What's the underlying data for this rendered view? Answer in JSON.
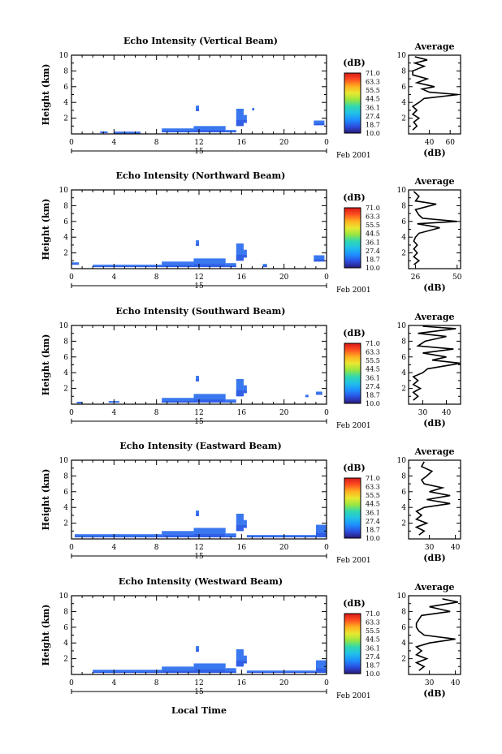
{
  "colors": {
    "colormap": [
      "#2a1a7a",
      "#2b4fe0",
      "#1e90ff",
      "#20c0e8",
      "#30d8b0",
      "#9ae640",
      "#e8e830",
      "#ffb020",
      "#ff5020",
      "#d81818"
    ],
    "echo": "#3a78f0"
  },
  "common": {
    "time_ticks": [
      "0",
      "4",
      "8",
      "12",
      "16",
      "20",
      "0"
    ],
    "date_day": "15",
    "date_month_year": "Feb 2001",
    "height_ticks": [
      "2",
      "4",
      "6",
      "8",
      "10"
    ],
    "y_label": "Height (km)",
    "unit_label": "(dB)",
    "avg_title": "Average",
    "avg_xlabel": "(dB)",
    "colorbar_ticks": [
      "71.0",
      "63.3",
      "55.5",
      "44.5",
      "36.1",
      "27.4",
      "18.7",
      "10.0"
    ],
    "x_label": "Local Time"
  },
  "chart_data": [
    {
      "type": "heatmap",
      "title": "Echo Intensity (Vertical Beam)",
      "xlabel": "",
      "ylabel": "Height (km)",
      "xlim": [
        0,
        24
      ],
      "ylim": [
        0,
        10
      ],
      "colorbar": {
        "label": "(dB)",
        "range": [
          10.0,
          71.0
        ]
      },
      "echo_spans": [
        {
          "t0": 2.7,
          "t1": 3.4,
          "h": 0.3
        },
        {
          "t0": 4.0,
          "t1": 6.5,
          "h": 0.25
        },
        {
          "t0": 8.5,
          "t1": 11.5,
          "h": 0.7
        },
        {
          "t0": 11.5,
          "t1": 14.5,
          "h": 1.0
        },
        {
          "t0": 11.7,
          "t1": 12.0,
          "h": 3.6,
          "h0": 2.9
        },
        {
          "t0": 14.5,
          "t1": 15.5,
          "h": 0.5
        },
        {
          "t0": 15.5,
          "t1": 16.2,
          "h": 3.2,
          "h0": 1.0
        },
        {
          "t0": 16.2,
          "t1": 16.5,
          "h": 2.4,
          "h0": 1.4
        },
        {
          "t0": 17.0,
          "t1": 17.2,
          "h": 3.3,
          "h0": 3.0
        },
        {
          "t0": 22.8,
          "t1": 23.8,
          "h": 1.7,
          "h0": 1.1
        }
      ],
      "average": {
        "xlabel": "(dB)",
        "xticks": [
          40,
          60
        ],
        "xlim": [
          20,
          70
        ],
        "profile": [
          [
            24,
            0.5
          ],
          [
            28,
            1.0
          ],
          [
            25,
            1.5
          ],
          [
            30,
            2.0
          ],
          [
            24,
            2.5
          ],
          [
            28,
            3.0
          ],
          [
            24,
            3.5
          ],
          [
            30,
            4.0
          ],
          [
            35,
            4.5
          ],
          [
            68,
            5.0
          ],
          [
            40,
            5.3
          ],
          [
            33,
            5.7
          ],
          [
            45,
            6.0
          ],
          [
            28,
            6.5
          ],
          [
            38,
            7.0
          ],
          [
            24,
            7.5
          ],
          [
            24,
            8.0
          ],
          [
            35,
            8.6
          ],
          [
            26,
            9.0
          ],
          [
            38,
            9.4
          ],
          [
            26,
            9.8
          ]
        ]
      }
    },
    {
      "type": "heatmap",
      "title": "Echo Intensity (Northward Beam)",
      "xlabel": "",
      "ylabel": "Height (km)",
      "xlim": [
        0,
        24
      ],
      "ylim": [
        0,
        10
      ],
      "colorbar": {
        "label": "(dB)",
        "range": [
          10.0,
          71.0
        ]
      },
      "echo_spans": [
        {
          "t0": 0.0,
          "t1": 0.7,
          "h": 0.8,
          "h0": 0.5
        },
        {
          "t0": 2.0,
          "t1": 8.5,
          "h": 0.5
        },
        {
          "t0": 8.5,
          "t1": 11.5,
          "h": 0.9
        },
        {
          "t0": 11.5,
          "t1": 14.5,
          "h": 1.3
        },
        {
          "t0": 11.7,
          "t1": 12.0,
          "h": 3.6,
          "h0": 2.9
        },
        {
          "t0": 14.5,
          "t1": 15.5,
          "h": 0.7
        },
        {
          "t0": 15.5,
          "t1": 16.2,
          "h": 3.2,
          "h0": 1.0
        },
        {
          "t0": 16.2,
          "t1": 16.5,
          "h": 2.4,
          "h0": 1.4
        },
        {
          "t0": 18.0,
          "t1": 18.4,
          "h": 0.6
        },
        {
          "t0": 22.8,
          "t1": 23.8,
          "h": 1.7,
          "h0": 0.9
        }
      ],
      "average": {
        "xlabel": "(dB)",
        "xticks": [
          26,
          50
        ],
        "xlim": [
          22,
          52
        ],
        "profile": [
          [
            25,
            0.5
          ],
          [
            28,
            1.0
          ],
          [
            25,
            1.5
          ],
          [
            27,
            2.0
          ],
          [
            25,
            2.5
          ],
          [
            27,
            3.0
          ],
          [
            25,
            3.5
          ],
          [
            26,
            4.0
          ],
          [
            28,
            4.5
          ],
          [
            40,
            5.2
          ],
          [
            27,
            5.7
          ],
          [
            50,
            6.0
          ],
          [
            30,
            6.4
          ],
          [
            28,
            6.8
          ],
          [
            26,
            7.5
          ],
          [
            38,
            8.2
          ],
          [
            26,
            8.6
          ],
          [
            28,
            9.2
          ],
          [
            25,
            9.8
          ]
        ]
      }
    },
    {
      "type": "heatmap",
      "title": "Echo Intensity (Southward Beam)",
      "xlabel": "",
      "ylabel": "Height (km)",
      "xlim": [
        0,
        24
      ],
      "ylim": [
        0,
        10
      ],
      "colorbar": {
        "label": "(dB)",
        "range": [
          10.0,
          71.0
        ]
      },
      "echo_spans": [
        {
          "t0": 0.5,
          "t1": 1.0,
          "h": 0.3
        },
        {
          "t0": 3.5,
          "t1": 4.5,
          "h": 0.4
        },
        {
          "t0": 8.5,
          "t1": 11.5,
          "h": 0.8
        },
        {
          "t0": 11.5,
          "t1": 14.5,
          "h": 1.3
        },
        {
          "t0": 11.7,
          "t1": 12.0,
          "h": 3.6,
          "h0": 2.9
        },
        {
          "t0": 14.5,
          "t1": 15.5,
          "h": 0.6
        },
        {
          "t0": 15.5,
          "t1": 16.2,
          "h": 3.2,
          "h0": 1.0
        },
        {
          "t0": 16.2,
          "t1": 16.5,
          "h": 2.4,
          "h0": 1.4
        },
        {
          "t0": 22.0,
          "t1": 22.3,
          "h": 1.2,
          "h0": 0.9
        },
        {
          "t0": 23.0,
          "t1": 23.6,
          "h": 1.6,
          "h0": 1.2
        }
      ],
      "average": {
        "xlabel": "(dB)",
        "xticks": [
          30,
          40
        ],
        "xlim": [
          24,
          46
        ],
        "profile": [
          [
            26,
            0.5
          ],
          [
            28,
            1.0
          ],
          [
            26,
            1.5
          ],
          [
            29,
            2.0
          ],
          [
            26,
            2.5
          ],
          [
            28,
            3.0
          ],
          [
            26,
            3.5
          ],
          [
            30,
            4.0
          ],
          [
            32,
            4.5
          ],
          [
            46,
            5.2
          ],
          [
            34,
            5.6
          ],
          [
            40,
            6.0
          ],
          [
            30,
            6.5
          ],
          [
            43,
            7.0
          ],
          [
            28,
            7.4
          ],
          [
            31,
            8.0
          ],
          [
            40,
            8.6
          ],
          [
            28,
            9.0
          ],
          [
            44,
            9.6
          ],
          [
            30,
            9.9
          ]
        ]
      }
    },
    {
      "type": "heatmap",
      "title": "Echo Intensity (Eastward Beam)",
      "xlabel": "",
      "ylabel": "Height (km)",
      "xlim": [
        0,
        24
      ],
      "ylim": [
        0,
        10
      ],
      "colorbar": {
        "label": "(dB)",
        "range": [
          10.0,
          71.0
        ]
      },
      "echo_spans": [
        {
          "t0": 0.3,
          "t1": 8.5,
          "h": 0.6
        },
        {
          "t0": 8.5,
          "t1": 11.5,
          "h": 1.0
        },
        {
          "t0": 11.5,
          "t1": 14.5,
          "h": 1.4
        },
        {
          "t0": 11.7,
          "t1": 12.0,
          "h": 3.6,
          "h0": 2.9
        },
        {
          "t0": 14.5,
          "t1": 15.5,
          "h": 0.7
        },
        {
          "t0": 15.5,
          "t1": 16.2,
          "h": 3.2,
          "h0": 1.0
        },
        {
          "t0": 16.2,
          "t1": 16.5,
          "h": 2.4,
          "h0": 1.4
        },
        {
          "t0": 16.5,
          "t1": 23.0,
          "h": 0.5
        },
        {
          "t0": 23.0,
          "t1": 24.0,
          "h": 1.8
        }
      ],
      "average": {
        "xlabel": "(dB)",
        "xticks": [
          30,
          40
        ],
        "xlim": [
          22,
          42
        ],
        "profile": [
          [
            26,
            0.5
          ],
          [
            28,
            1.0
          ],
          [
            25,
            1.5
          ],
          [
            29,
            2.0
          ],
          [
            25,
            2.5
          ],
          [
            27,
            3.0
          ],
          [
            25,
            3.5
          ],
          [
            28,
            4.0
          ],
          [
            38,
            4.5
          ],
          [
            29,
            5.0
          ],
          [
            38,
            5.5
          ],
          [
            30,
            6.0
          ],
          [
            35,
            6.5
          ],
          [
            28,
            7.0
          ],
          [
            27,
            7.5
          ],
          [
            29,
            8.0
          ],
          [
            31,
            8.6
          ],
          [
            27,
            9.2
          ],
          [
            28,
            9.8
          ]
        ]
      }
    },
    {
      "type": "heatmap",
      "title": "Echo Intensity (Westward Beam)",
      "xlabel": "Local Time",
      "ylabel": "Height (km)",
      "xlim": [
        0,
        24
      ],
      "ylim": [
        0,
        10
      ],
      "colorbar": {
        "label": "(dB)",
        "range": [
          10.0,
          71.0
        ]
      },
      "echo_spans": [
        {
          "t0": 2.0,
          "t1": 8.5,
          "h": 0.6
        },
        {
          "t0": 8.5,
          "t1": 11.5,
          "h": 1.0
        },
        {
          "t0": 11.5,
          "t1": 14.5,
          "h": 1.4
        },
        {
          "t0": 11.7,
          "t1": 12.0,
          "h": 3.6,
          "h0": 2.9
        },
        {
          "t0": 14.5,
          "t1": 15.5,
          "h": 0.8
        },
        {
          "t0": 15.5,
          "t1": 16.2,
          "h": 3.2,
          "h0": 1.0
        },
        {
          "t0": 16.2,
          "t1": 16.5,
          "h": 2.4,
          "h0": 1.4
        },
        {
          "t0": 16.5,
          "t1": 23.0,
          "h": 0.5
        },
        {
          "t0": 23.0,
          "t1": 24.0,
          "h": 1.8
        }
      ],
      "average": {
        "xlabel": "(dB)",
        "xticks": [
          30,
          40
        ],
        "xlim": [
          22,
          42
        ],
        "profile": [
          [
            26,
            0.5
          ],
          [
            28,
            1.0
          ],
          [
            25,
            1.5
          ],
          [
            29,
            2.0
          ],
          [
            25,
            2.5
          ],
          [
            27,
            3.0
          ],
          [
            25,
            3.5
          ],
          [
            30,
            4.0
          ],
          [
            40,
            4.5
          ],
          [
            28,
            5.0
          ],
          [
            26,
            5.5
          ],
          [
            25,
            6.0
          ],
          [
            25,
            6.5
          ],
          [
            26,
            7.0
          ],
          [
            27,
            7.5
          ],
          [
            38,
            8.0
          ],
          [
            30,
            8.6
          ],
          [
            41,
            9.2
          ],
          [
            35,
            9.6
          ]
        ]
      }
    }
  ]
}
